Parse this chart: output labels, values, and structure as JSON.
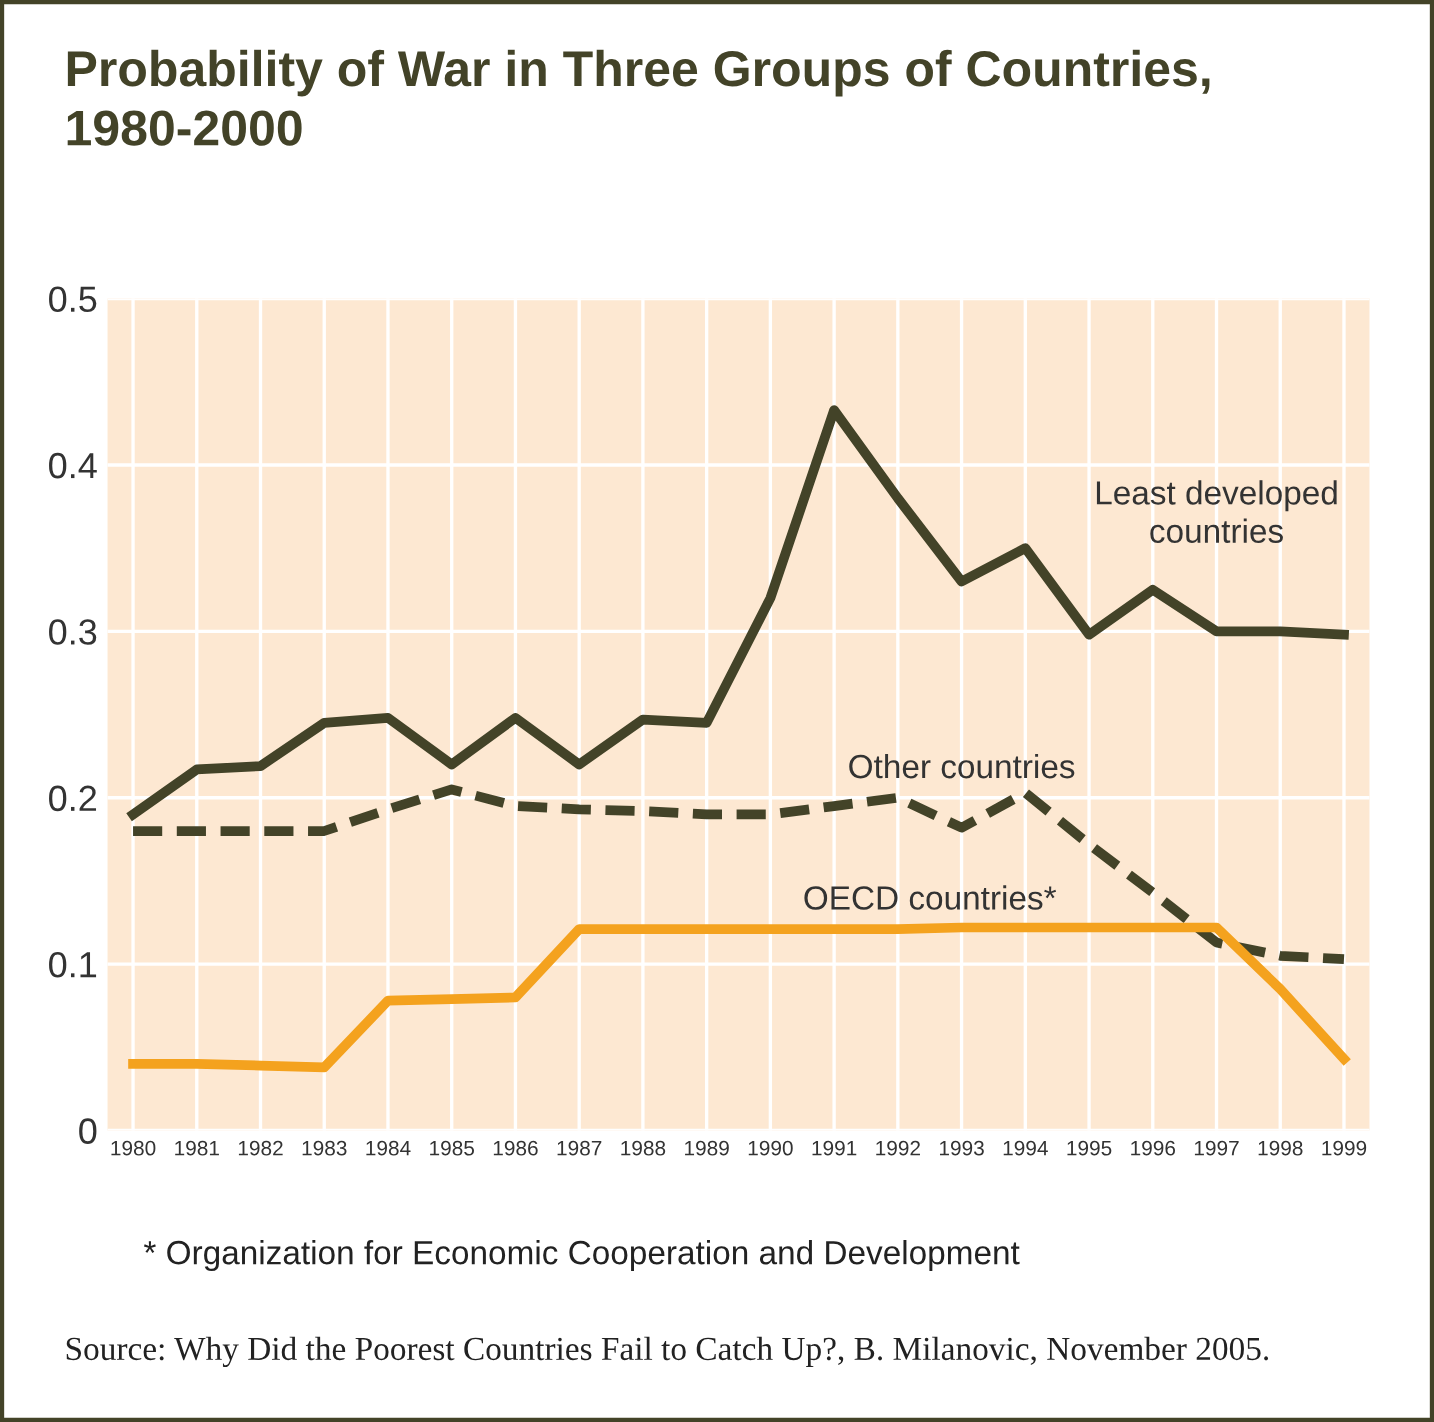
{
  "chart_data": {
    "type": "line",
    "title": "Probability of War in Three Groups of Countries,\n1980-2000",
    "categories": [
      "1980",
      "1981",
      "1982",
      "1983",
      "1984",
      "1985",
      "1986",
      "1987",
      "1988",
      "1989",
      "1990",
      "1991",
      "1992",
      "1993",
      "1994",
      "1995",
      "1996",
      "1997",
      "1998",
      "1999"
    ],
    "series": [
      {
        "name": "Least developed\ncountries",
        "color": "#434328",
        "line_style": "solid",
        "values": [
          0.19,
          0.217,
          0.219,
          0.245,
          0.248,
          0.22,
          0.248,
          0.22,
          0.247,
          0.245,
          0.32,
          0.433,
          0.38,
          0.33,
          0.35,
          0.298,
          0.325,
          0.3,
          0.3,
          0.298
        ]
      },
      {
        "name": "Other countries",
        "color": "#434328",
        "line_style": "dashed",
        "values": [
          0.18,
          0.18,
          0.18,
          0.18,
          0.193,
          0.205,
          0.195,
          0.193,
          0.192,
          0.19,
          0.19,
          0.195,
          0.2,
          0.182,
          0.203,
          0.172,
          0.143,
          0.113,
          0.105,
          0.103
        ]
      },
      {
        "name": "OECD countries*",
        "color": "#f4a21e",
        "line_style": "solid",
        "values": [
          0.04,
          0.04,
          0.039,
          0.038,
          0.078,
          0.079,
          0.08,
          0.121,
          0.121,
          0.121,
          0.121,
          0.121,
          0.121,
          0.122,
          0.122,
          0.122,
          0.122,
          0.122,
          0.085,
          0.043
        ]
      }
    ],
    "ylim": [
      0,
      0.5
    ],
    "yticks": [
      {
        "value": 0,
        "label": "0"
      },
      0.1,
      0.2,
      0.3,
      0.4,
      0.5
    ],
    "grid": true,
    "legend": false,
    "annotations": [
      "* Organization for Economic Cooperation and Development",
      "Source: Why Did the Poorest Countries Fail to Catch Up?, B. Milanovic, November 2005."
    ]
  }
}
